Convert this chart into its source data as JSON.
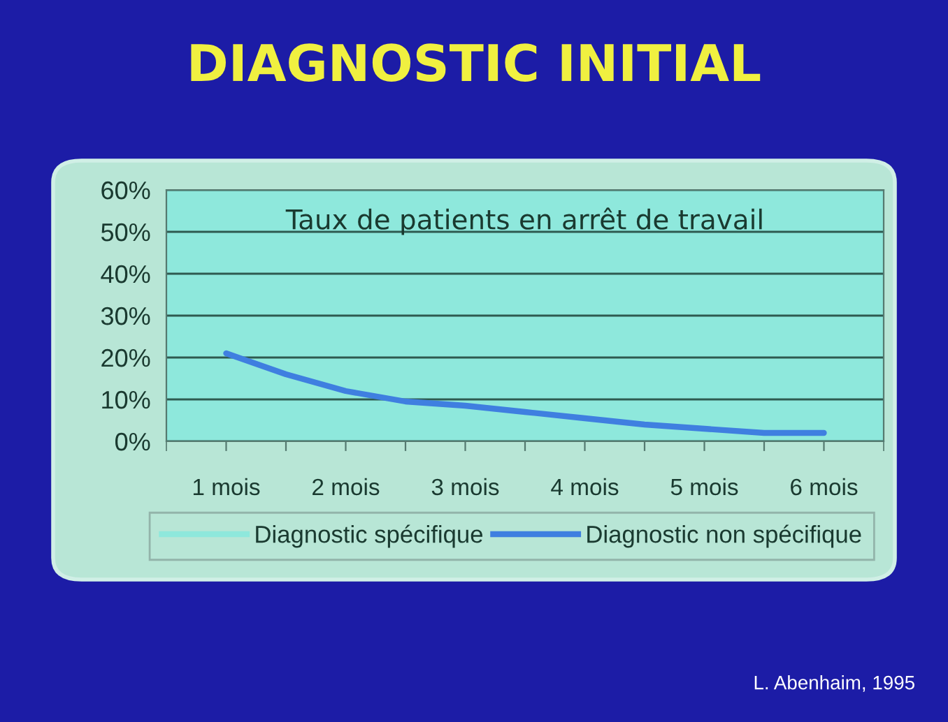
{
  "chart_data": {
    "type": "line",
    "title": "DIAGNOSTIC INITIAL",
    "subtitle": "Taux de patients en arrêt de travail",
    "categories": [
      "1 mois",
      null,
      "2 mois",
      null,
      "3 mois",
      null,
      "4 mois",
      null,
      "5 mois",
      null,
      "6 mois"
    ],
    "series": [
      {
        "name": "Diagnostic spécifique",
        "color": "#8ee8dc",
        "values": [
          null,
          null,
          null,
          null,
          null,
          null,
          null,
          null,
          null,
          null,
          null
        ]
      },
      {
        "name": "Diagnostic non spécifique",
        "color": "#3f7fe0",
        "values": [
          21,
          16,
          12,
          9.5,
          8.5,
          7,
          5.5,
          4,
          3,
          2,
          2
        ]
      }
    ],
    "ylim": [
      0,
      60
    ],
    "yticks": [
      {
        "value": 0,
        "label": "0%"
      },
      {
        "value": 10,
        "label": "10%"
      },
      {
        "value": 20,
        "label": "20%"
      },
      {
        "value": 30,
        "label": "30%"
      },
      {
        "value": 40,
        "label": "40%"
      },
      {
        "value": 50,
        "label": "50%"
      },
      {
        "value": 60,
        "label": "60%"
      }
    ],
    "grid": "y",
    "legend": "bottom",
    "line_style": "solid",
    "annotations": [
      "L. Abenhaim, 1995"
    ]
  }
}
